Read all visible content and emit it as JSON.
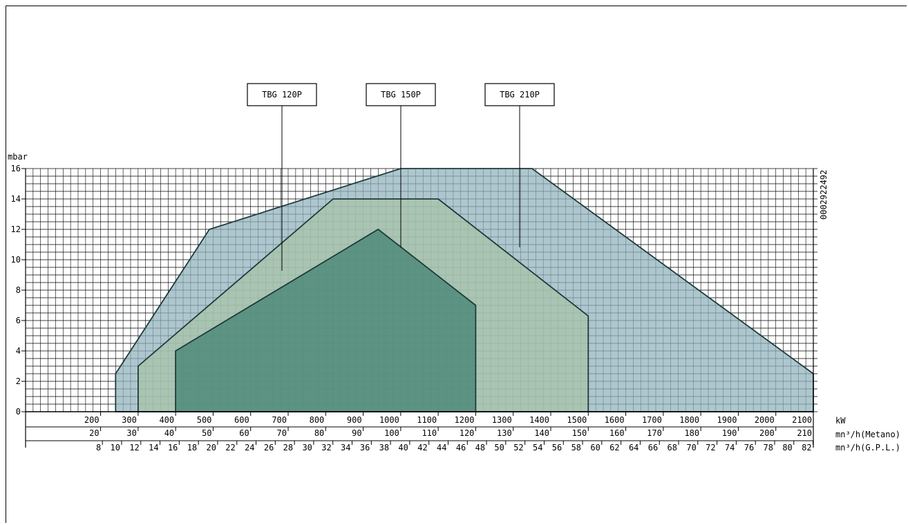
{
  "chart_data": {
    "type": "area",
    "title": "",
    "ylabel": "mbar",
    "ylim": [
      0,
      16
    ],
    "yticks": [
      0,
      2,
      4,
      6,
      8,
      10,
      12,
      14,
      16
    ],
    "xlim": [
      0,
      2100
    ],
    "x_axes": [
      {
        "unit": "kW",
        "ticks": [
          200,
          300,
          400,
          500,
          600,
          700,
          800,
          900,
          1000,
          1100,
          1200,
          1300,
          1400,
          1500,
          1600,
          1700,
          1800,
          1900,
          2000,
          2100
        ]
      },
      {
        "unit": "mn³/h(Metano)",
        "ticks": [
          20,
          30,
          40,
          50,
          60,
          70,
          80,
          90,
          100,
          110,
          120,
          130,
          140,
          150,
          160,
          170,
          180,
          190,
          200,
          210
        ]
      },
      {
        "unit": "mn³/h(G.P.L.)",
        "ticks": [
          8,
          10,
          12,
          14,
          16,
          18,
          20,
          22,
          24,
          26,
          28,
          30,
          32,
          34,
          36,
          38,
          40,
          42,
          44,
          46,
          48,
          50,
          52,
          54,
          56,
          58,
          60,
          62,
          64,
          66,
          68,
          70,
          72,
          74,
          76,
          78,
          80,
          82
        ]
      }
    ],
    "series": [
      {
        "name": "TBG 210P",
        "color": "#8fb2bc",
        "points": [
          [
            240,
            0
          ],
          [
            240,
            2.5
          ],
          [
            490,
            12
          ],
          [
            1000,
            16
          ],
          [
            1350,
            16
          ],
          [
            2100,
            2.5
          ],
          [
            2100,
            0
          ]
        ]
      },
      {
        "name": "TBG 150P",
        "color": "#a7c3a6",
        "points": [
          [
            300,
            0
          ],
          [
            300,
            3
          ],
          [
            820,
            14
          ],
          [
            1100,
            14
          ],
          [
            1500,
            6.3
          ],
          [
            1500,
            0
          ]
        ]
      },
      {
        "name": "TBG 120P",
        "color": "#3f8070",
        "points": [
          [
            400,
            0
          ],
          [
            400,
            4
          ],
          [
            940,
            12
          ],
          [
            1200,
            7
          ],
          [
            1200,
            0
          ]
        ]
      }
    ],
    "legend": [
      "TBG 120P",
      "TBG 150P",
      "TBG 210P"
    ],
    "annotation": "0002922492",
    "grid": true
  }
}
